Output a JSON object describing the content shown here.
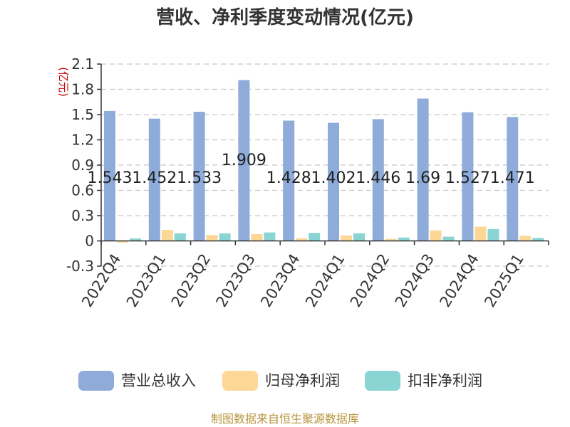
{
  "chart_data": {
    "type": "bar",
    "title": "营收、净利季度变动情况(亿元)",
    "ylabel": "(亿元)",
    "categories": [
      "2022Q4",
      "2023Q1",
      "2023Q2",
      "2023Q3",
      "2023Q4",
      "2024Q1",
      "2024Q2",
      "2024Q3",
      "2024Q4",
      "2025Q1"
    ],
    "ylim": [
      -0.3,
      2.1
    ],
    "yticks": [
      "2.1",
      "1.8",
      "1.5",
      "1.2",
      "0.9",
      "0.6",
      "0.3",
      "0",
      "-0.3"
    ],
    "grid": true,
    "legend_position": "bottom",
    "series": [
      {
        "name": "营业总收入",
        "color": "#8eabd9",
        "values": [
          1.543,
          1.452,
          1.533,
          1.909,
          1.428,
          1.402,
          1.446,
          1.69,
          1.527,
          1.471
        ],
        "labels": [
          "1.543",
          "1.452",
          "1.533",
          "1.909",
          "1.428",
          "1.402",
          "1.446",
          "1.69",
          "1.527",
          "1.471"
        ]
      },
      {
        "name": "归母净利润",
        "color": "#fcd796",
        "values": [
          -0.02,
          0.13,
          0.07,
          0.08,
          0.03,
          0.065,
          0.025,
          0.125,
          0.17,
          0.06
        ]
      },
      {
        "name": "扣非净利润",
        "color": "#8ad4d4",
        "values": [
          0.03,
          0.09,
          0.09,
          0.1,
          0.095,
          0.09,
          0.04,
          0.05,
          0.14,
          0.035
        ]
      }
    ]
  },
  "footer": {
    "source": "制图数据来自恒生聚源数据库"
  }
}
